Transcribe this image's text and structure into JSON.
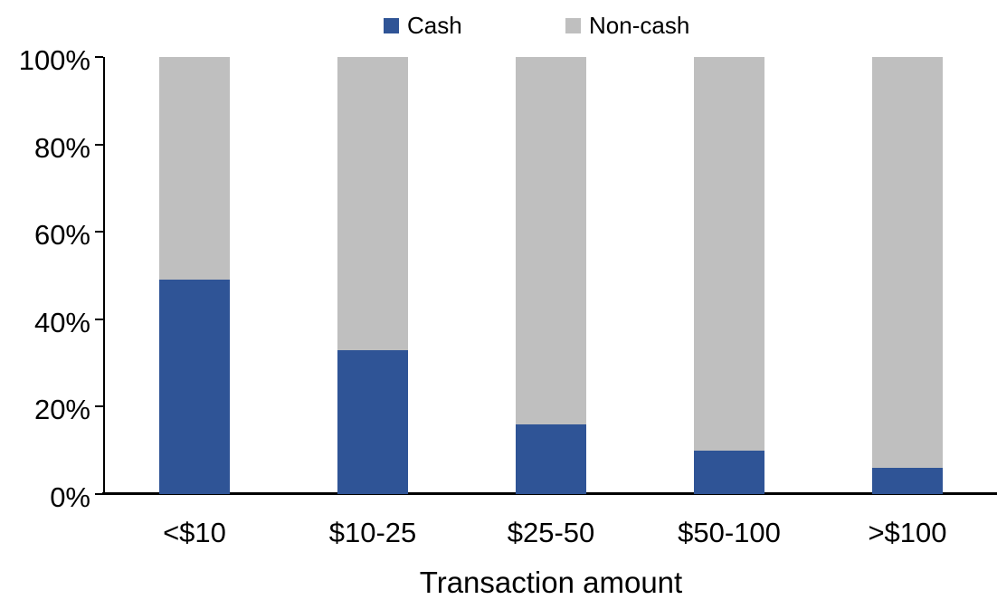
{
  "chart_data": {
    "type": "bar",
    "stacked": true,
    "stack_total_percent": 100,
    "title": "",
    "xlabel": "Transaction amount",
    "ylabel": "",
    "categories": [
      "<$10",
      "$10-25",
      "$25-50",
      "$50-100",
      ">$100"
    ],
    "series": [
      {
        "name": "Cash",
        "color": "#2F5496",
        "values": [
          49,
          33,
          16,
          10,
          6
        ]
      },
      {
        "name": "Non-cash",
        "color": "#BFBFBF",
        "values": [
          51,
          67,
          84,
          90,
          94
        ]
      }
    ],
    "ylim": [
      0,
      100
    ],
    "yticks": [
      0,
      20,
      40,
      60,
      80,
      100
    ],
    "ytick_labels": [
      "0%",
      "20%",
      "40%",
      "60%",
      "80%",
      "100%"
    ],
    "grid": false,
    "legend_position": "top",
    "axis_color": "#000000",
    "text_color": "#000000",
    "background_color": "#FFFFFF"
  }
}
